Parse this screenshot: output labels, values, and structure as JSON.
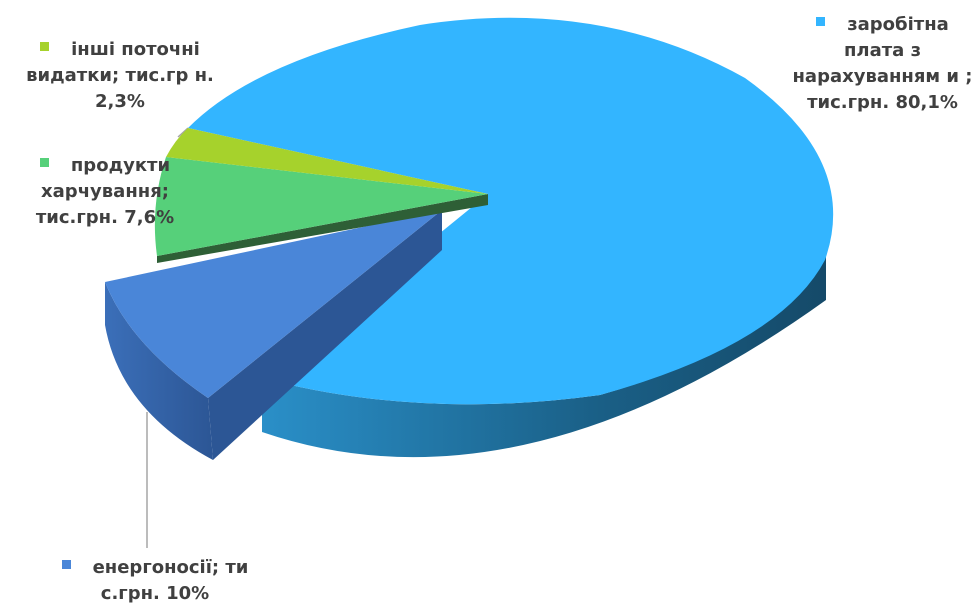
{
  "chart_data": {
    "type": "pie",
    "style": "3d-exploded",
    "slices": [
      {
        "name": "заробітна плата з нарахуваннями",
        "value": 80.1,
        "unit": "%",
        "color": "#33b5ff",
        "label": "заробітна плата з нарахуванням и ; тис.грн. 80,1%"
      },
      {
        "name": "енергоносії",
        "value": 10,
        "unit": "%",
        "color": "#4a86d8",
        "label": "енергоносії; ти с.грн. 10%"
      },
      {
        "name": "продукти харчування",
        "value": 7.6,
        "unit": "%",
        "color": "#56d07a",
        "label": "продукти харчування; тис.грн. 7,6%"
      },
      {
        "name": "інші поточні видатки",
        "value": 2.3,
        "unit": "%",
        "color": "#a6d22c",
        "label": "інші поточні видатки; тис.гр н. 2,3%"
      }
    ],
    "legend": "none",
    "data_labels": "outside-with-leader-lines"
  }
}
